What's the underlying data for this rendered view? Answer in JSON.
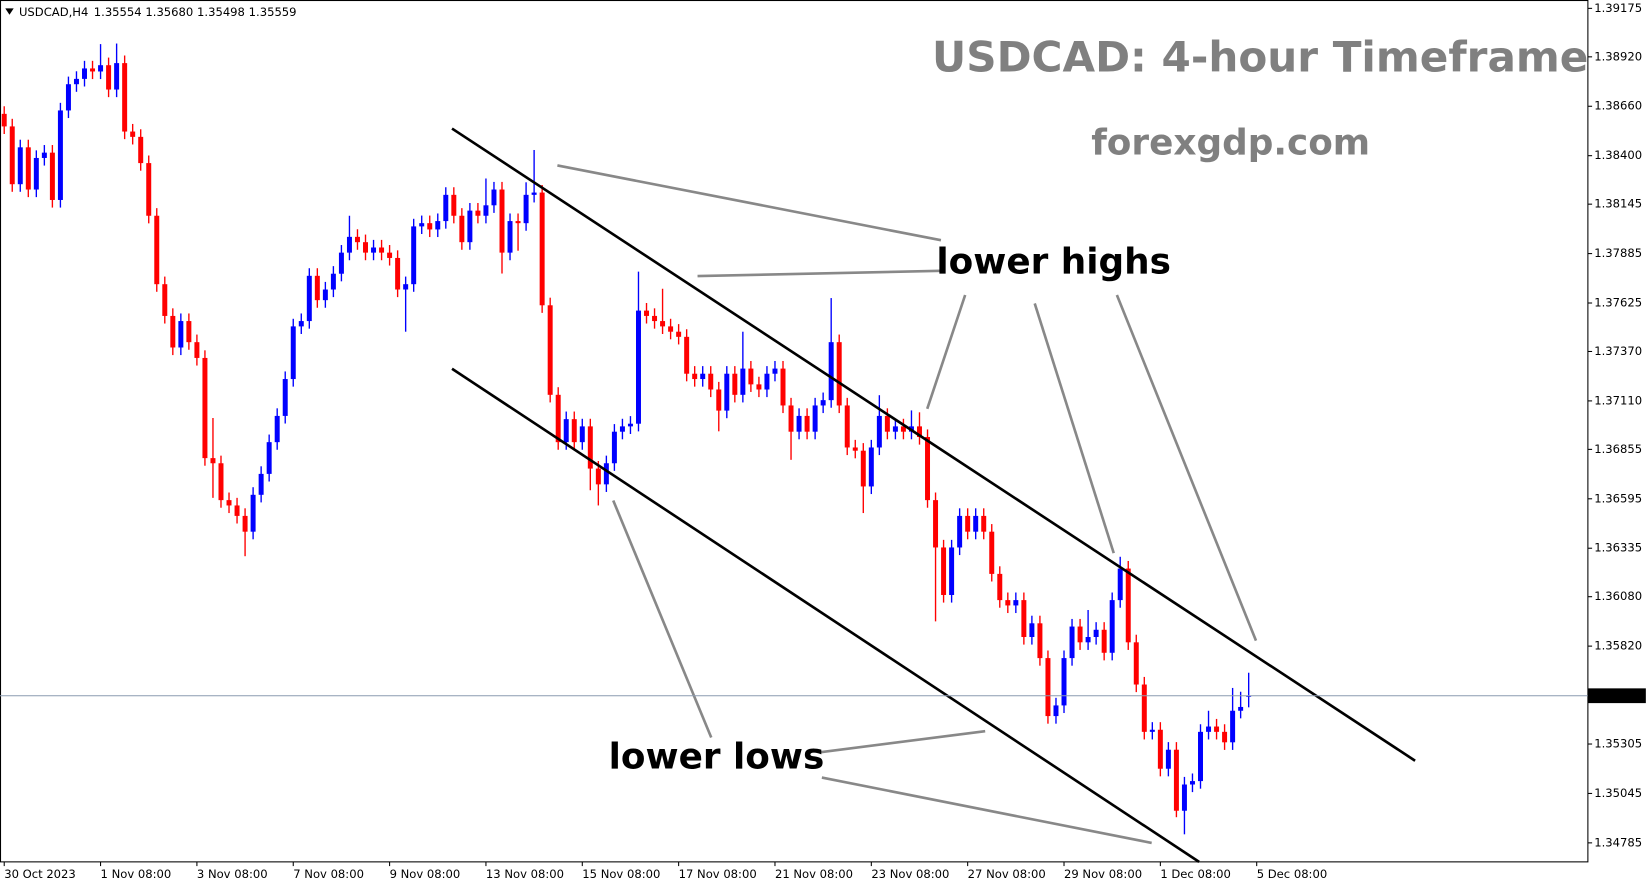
{
  "chart_data": {
    "type": "candlestick",
    "title": "USDCAD: 4-hour Timeframe",
    "subtitle": "forexgdp.com",
    "symbol": "USDCAD,H4",
    "quote": [
      "1.35554",
      "1.35680",
      "1.35498",
      "1.35559"
    ],
    "annotations": [
      "lower highs",
      "lower lows"
    ],
    "up_color": "#0000ff",
    "down_color": "#ff0000",
    "last_price_line": true,
    "xlim": [
      -0.525,
      197.25
    ],
    "xticks": [
      {
        "value": 0,
        "label": "30 Oct 2023"
      },
      {
        "value": 12,
        "label": "1 Nov 08:00"
      },
      {
        "value": 24,
        "label": "3 Nov 08:00"
      },
      {
        "value": 36,
        "label": "7 Nov 08:00"
      },
      {
        "value": 48,
        "label": "9 Nov 08:00"
      },
      {
        "value": 60,
        "label": "13 Nov 08:00"
      },
      {
        "value": 72,
        "label": "15 Nov 08:00"
      },
      {
        "value": 84,
        "label": "17 Nov 08:00"
      },
      {
        "value": 96,
        "label": "21 Nov 08:00"
      },
      {
        "value": 108,
        "label": "23 Nov 08:00"
      },
      {
        "value": 120,
        "label": "27 Nov 08:00"
      },
      {
        "value": 132,
        "label": "29 Nov 08:00"
      },
      {
        "value": 144,
        "label": "1 Dec 08:00"
      },
      {
        "value": 156,
        "label": "5 Dec 08:00"
      }
    ],
    "ylim": [
      1.34685,
      1.39219
    ],
    "yticks": [
      1.39175,
      {
        "value": 1.3892,
        "label": "1.38920"
      },
      {
        "value": 1.3866,
        "label": "1.38660"
      },
      {
        "value": 1.384,
        "label": "1.38400"
      },
      1.38145,
      1.37885,
      1.37625,
      {
        "value": 1.3737,
        "label": "1.37370"
      },
      {
        "value": 1.3711,
        "label": "1.37110"
      },
      1.36855,
      1.36595,
      1.36335,
      {
        "value": 1.3608,
        "label": "1.36080"
      },
      {
        "value": 1.3582,
        "label": "1.35820"
      },
      1.35305,
      1.35045,
      1.34785
    ],
    "open": [
      1.3862,
      1.38554,
      1.3825,
      1.38444,
      1.38222,
      1.38388,
      1.38416,
      1.38167,
      1.38638,
      1.38776,
      1.38804,
      1.38859,
      1.38843,
      1.38876,
      1.38748,
      1.38887,
      1.38527,
      1.38499,
      1.38361,
      1.38084,
      1.37724,
      1.37557,
      1.37391,
      1.3753,
      1.37419,
      1.37336,
      1.36809,
      1.36782,
      1.36588,
      1.3656,
      1.36505,
      1.36422,
      1.36616,
      1.36726,
      1.36893,
      1.37031,
      1.37225,
      1.37502,
      1.3753,
      1.37768,
      1.3764,
      1.37696,
      1.37779,
      1.3789,
      1.37973,
      1.37945,
      1.3789,
      1.37917,
      1.3789,
      1.37862,
      1.37696,
      1.37724,
      1.38028,
      1.38045,
      1.38012,
      1.38056,
      1.38194,
      1.38084,
      1.37945,
      1.38111,
      1.38084,
      1.38139,
      1.38222,
      1.3789,
      1.38056,
      1.38045,
      1.38194,
      1.38206,
      1.37613,
      1.37142,
      1.36893,
      1.37014,
      1.36893,
      1.36976,
      1.36754,
      1.36671,
      1.36782,
      1.36948,
      1.36976,
      1.3699,
      1.37585,
      1.37557,
      1.3753,
      1.37502,
      1.37474,
      1.37447,
      1.37253,
      1.37225,
      1.37253,
      1.3717,
      1.37059,
      1.37253,
      1.37142,
      1.3728,
      1.37197,
      1.3717,
      1.37253,
      1.3728,
      1.37086,
      1.36948,
      1.37031,
      1.36948,
      1.37086,
      1.37114,
      1.37419,
      1.37086,
      1.36865,
      1.36848,
      1.3666,
      1.36865,
      1.37031,
      1.36948,
      1.36976,
      1.36948,
      1.36976,
      1.3692,
      1.36588,
      1.36339,
      1.36089,
      1.36339,
      1.36505,
      1.36422,
      1.36505,
      1.36422,
      1.362,
      1.36062,
      1.36034,
      1.36062,
      1.35868,
      1.3594,
      1.35757,
      1.35452,
      1.35508,
      1.35757,
      1.35923,
      1.3584,
      1.35868,
      1.35906,
      1.35785,
      1.36062,
      1.36228,
      1.3584,
      1.35618,
      1.35369,
      1.3538,
      1.35175,
      1.35275,
      1.34954,
      1.35092,
      1.3511,
      1.35369,
      1.35397,
      1.35369,
      1.35314,
      1.3548,
      1.35554
    ],
    "high": [
      1.3866,
      1.38594,
      1.38484,
      1.38484,
      1.38428,
      1.38456,
      1.38456,
      1.38678,
      1.38816,
      1.38844,
      1.38899,
      1.38899,
      1.38987,
      1.38916,
      1.3899,
      1.38927,
      1.38567,
      1.38539,
      1.38401,
      1.38124,
      1.37764,
      1.37597,
      1.3757,
      1.3757,
      1.37459,
      1.37376,
      1.3702,
      1.36822,
      1.36628,
      1.366,
      1.36545,
      1.36656,
      1.36766,
      1.36933,
      1.37071,
      1.37265,
      1.37542,
      1.3757,
      1.37808,
      1.37808,
      1.37736,
      1.37819,
      1.3793,
      1.38084,
      1.38013,
      1.37985,
      1.37957,
      1.37957,
      1.3793,
      1.37902,
      1.37764,
      1.38068,
      1.38085,
      1.38085,
      1.38096,
      1.38234,
      1.38234,
      1.38124,
      1.38151,
      1.38151,
      1.3828,
      1.38262,
      1.38262,
      1.38096,
      1.38096,
      1.3826,
      1.3843,
      1.38246,
      1.37653,
      1.37182,
      1.37054,
      1.37054,
      1.37016,
      1.37016,
      1.36794,
      1.36822,
      1.36988,
      1.37016,
      1.3703,
      1.3779,
      1.37625,
      1.37597,
      1.377,
      1.37542,
      1.37514,
      1.37487,
      1.37293,
      1.37293,
      1.37293,
      1.3721,
      1.37293,
      1.37293,
      1.37474,
      1.3732,
      1.37237,
      1.37293,
      1.3732,
      1.3732,
      1.37126,
      1.37071,
      1.37071,
      1.37126,
      1.37154,
      1.37651,
      1.37459,
      1.37126,
      1.36905,
      1.36888,
      1.36905,
      1.3714,
      1.37071,
      1.37016,
      1.37016,
      1.3706,
      1.3705,
      1.3696,
      1.36628,
      1.36379,
      1.36379,
      1.36545,
      1.36545,
      1.36545,
      1.36545,
      1.36462,
      1.3624,
      1.36102,
      1.36102,
      1.36102,
      1.3598,
      1.3598,
      1.35797,
      1.35548,
      1.35797,
      1.35963,
      1.35963,
      1.3601,
      1.35946,
      1.35946,
      1.36102,
      1.3629,
      1.36268,
      1.3588,
      1.35658,
      1.3542,
      1.3542,
      1.35315,
      1.35315,
      1.35132,
      1.3515,
      1.35409,
      1.3548,
      1.35437,
      1.35409,
      1.356,
      1.3558,
      1.3568
    ],
    "low": [
      1.38514,
      1.3821,
      1.3821,
      1.38182,
      1.38182,
      1.38348,
      1.38127,
      1.38127,
      1.38598,
      1.38736,
      1.38764,
      1.38803,
      1.38803,
      1.38708,
      1.38708,
      1.38487,
      1.38459,
      1.38321,
      1.38044,
      1.37684,
      1.37517,
      1.37351,
      1.37351,
      1.37379,
      1.37296,
      1.36769,
      1.366,
      1.36548,
      1.3652,
      1.36465,
      1.36293,
      1.36382,
      1.36576,
      1.36686,
      1.36853,
      1.36991,
      1.37185,
      1.37462,
      1.3749,
      1.376,
      1.376,
      1.37656,
      1.37739,
      1.3785,
      1.37905,
      1.3785,
      1.3785,
      1.3785,
      1.37822,
      1.37656,
      1.37474,
      1.37684,
      1.37988,
      1.37972,
      1.37972,
      1.38016,
      1.38044,
      1.37905,
      1.37905,
      1.38044,
      1.38044,
      1.38099,
      1.3778,
      1.3785,
      1.379,
      1.38005,
      1.38154,
      1.37573,
      1.37102,
      1.36853,
      1.36853,
      1.36853,
      1.36853,
      1.3664,
      1.3656,
      1.36631,
      1.36742,
      1.36908,
      1.36936,
      1.3695,
      1.37517,
      1.3749,
      1.37462,
      1.37434,
      1.37407,
      1.37213,
      1.37185,
      1.37185,
      1.3713,
      1.3695,
      1.37019,
      1.37102,
      1.37102,
      1.37157,
      1.3713,
      1.3713,
      1.37213,
      1.37046,
      1.368,
      1.36908,
      1.36908,
      1.36908,
      1.37046,
      1.37074,
      1.37046,
      1.36825,
      1.36808,
      1.3652,
      1.3662,
      1.36825,
      1.36908,
      1.36908,
      1.36908,
      1.36908,
      1.3688,
      1.36548,
      1.3595,
      1.36049,
      1.36049,
      1.36299,
      1.36382,
      1.36382,
      1.36382,
      1.3616,
      1.36022,
      1.35994,
      1.35994,
      1.35828,
      1.35828,
      1.35717,
      1.35412,
      1.35412,
      1.35468,
      1.35717,
      1.358,
      1.358,
      1.35828,
      1.35745,
      1.35745,
      1.36022,
      1.358,
      1.35578,
      1.35329,
      1.35329,
      1.35135,
      1.35135,
      1.3492,
      1.3483,
      1.35052,
      1.3507,
      1.35329,
      1.35329,
      1.35274,
      1.35274,
      1.3544,
      1.35498
    ],
    "close": [
      1.38554,
      1.3825,
      1.38444,
      1.38222,
      1.38388,
      1.38416,
      1.38167,
      1.38638,
      1.38776,
      1.38804,
      1.38859,
      1.38843,
      1.38876,
      1.38748,
      1.38887,
      1.38527,
      1.38499,
      1.38361,
      1.38084,
      1.37724,
      1.37557,
      1.37391,
      1.3753,
      1.37419,
      1.37336,
      1.36809,
      1.36782,
      1.36588,
      1.3656,
      1.36505,
      1.36422,
      1.36616,
      1.36726,
      1.36893,
      1.37031,
      1.37225,
      1.37502,
      1.3753,
      1.37768,
      1.3764,
      1.37696,
      1.37779,
      1.3789,
      1.37973,
      1.37945,
      1.3789,
      1.37917,
      1.3789,
      1.37862,
      1.37696,
      1.37724,
      1.38028,
      1.38045,
      1.38012,
      1.38056,
      1.38194,
      1.38084,
      1.37945,
      1.38111,
      1.38084,
      1.38139,
      1.38222,
      1.3789,
      1.38056,
      1.38045,
      1.38194,
      1.38206,
      1.37613,
      1.37142,
      1.36893,
      1.37014,
      1.36893,
      1.36976,
      1.36754,
      1.36671,
      1.36782,
      1.36948,
      1.36976,
      1.3699,
      1.37585,
      1.37557,
      1.3753,
      1.37502,
      1.37474,
      1.37447,
      1.37253,
      1.37225,
      1.37253,
      1.3717,
      1.37059,
      1.37253,
      1.37142,
      1.3728,
      1.37197,
      1.3717,
      1.37253,
      1.3728,
      1.37086,
      1.36948,
      1.37031,
      1.36948,
      1.37086,
      1.37114,
      1.37419,
      1.37086,
      1.36865,
      1.36848,
      1.3666,
      1.36865,
      1.37031,
      1.36948,
      1.36976,
      1.36948,
      1.36976,
      1.3692,
      1.36588,
      1.36339,
      1.36089,
      1.36339,
      1.36505,
      1.36422,
      1.36505,
      1.36422,
      1.362,
      1.36062,
      1.36034,
      1.36062,
      1.35868,
      1.3594,
      1.35757,
      1.35452,
      1.35508,
      1.35757,
      1.35923,
      1.3584,
      1.35868,
      1.35906,
      1.35785,
      1.36062,
      1.36228,
      1.3584,
      1.35618,
      1.35369,
      1.3538,
      1.35175,
      1.35275,
      1.34954,
      1.35092,
      1.3511,
      1.35369,
      1.35397,
      1.35369,
      1.35314,
      1.3548,
      1.355,
      1.35559
    ]
  }
}
